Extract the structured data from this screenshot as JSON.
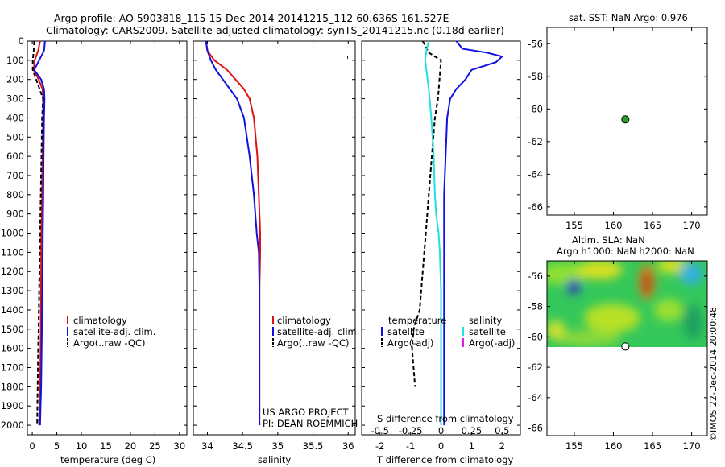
{
  "header": {
    "line1": "Argo profile: AO 5903818_115 15-Dec-2014 20141215_112 60.636S 161.527E",
    "line2": "Climatology: CARS2009. Satellite-adjusted climatology: synTS_20141215.nc (0.18d earlier)"
  },
  "colors": {
    "clim": "#e01010",
    "sat": "#1010e0",
    "argo": "#000000",
    "sal_sat": "#20e0e0",
    "sal_argo": "#e020e0",
    "argo_dot": "#2aa02a"
  },
  "panels": {
    "temperature": {
      "xlabel": "temperature (deg C)",
      "legend": [
        "climatology",
        "satellite-adj. clim.",
        "Argo(..raw -QC)"
      ]
    },
    "salinity": {
      "xlabel": "salinity",
      "legend": [
        "climatology",
        "satellite-adj. clim.",
        "Argo(..raw -QC)"
      ],
      "note1": "US ARGO PROJECT",
      "note2": "PI: DEAN ROEMMICH",
      "marker": "\""
    },
    "difference": {
      "xlabel": "T difference from climatology",
      "top_label": "S difference from climatology",
      "legend_temp_title": "temperature",
      "legend_sal_title": "salinity",
      "legend_temp": [
        "satellite",
        "Argo(-adj)"
      ],
      "legend_sal": [
        "satellite",
        "Argo(-adj)"
      ]
    },
    "sst_map": {
      "title": "sat. SST: NaN Argo: 0.976"
    },
    "sla_map": {
      "title1": "Altim. SLA: NaN",
      "title2": "Argo h1000: NaN h2000: NaN"
    },
    "credit": "©IMOS 22-Dec-2014 20:00:48"
  },
  "chart_data": [
    {
      "type": "line",
      "name": "temperature profile",
      "xlabel": "temperature (deg C)",
      "ylabel": "",
      "xlim": [
        -1,
        31.5
      ],
      "ylim": [
        2050,
        0
      ],
      "xticks": [
        0,
        5,
        10,
        15,
        20,
        25,
        30
      ],
      "yticks": [
        0,
        100,
        200,
        300,
        400,
        500,
        600,
        700,
        800,
        900,
        1000,
        1100,
        1200,
        1300,
        1400,
        1500,
        1600,
        1700,
        1800,
        1900,
        2000
      ],
      "series": [
        {
          "name": "climatology",
          "color": "#e01010",
          "x": [
            1.6,
            1.2,
            0.5,
            0.3,
            1.3,
            2.1,
            2.2,
            2.2,
            2.1,
            2.0,
            1.95,
            1.85,
            1.8,
            1.75,
            1.7,
            1.6,
            1.5,
            1.4
          ],
          "y": [
            0,
            50,
            100,
            150,
            200,
            250,
            300,
            400,
            600,
            800,
            900,
            1000,
            1200,
            1400,
            1600,
            1800,
            1900,
            2000
          ]
        },
        {
          "name": "satellite-adj. clim.",
          "color": "#1010e0",
          "x": [
            2.6,
            2.4,
            1.4,
            0.4,
            1.8,
            2.4,
            2.5,
            2.4,
            2.3,
            2.25,
            2.2,
            2.15,
            2.1,
            2.0,
            1.9,
            1.8,
            1.7,
            1.6
          ],
          "y": [
            0,
            50,
            100,
            150,
            200,
            250,
            300,
            400,
            600,
            800,
            900,
            1000,
            1200,
            1400,
            1600,
            1800,
            1900,
            2000
          ]
        },
        {
          "name": "Argo(..raw -QC)",
          "color": "#000000",
          "dashed": true,
          "x": [
            0.4,
            0.3,
            0.1,
            0.1,
            1.5,
            2.2,
            2.0,
            1.8,
            1.6,
            1.4,
            1.3,
            1.2,
            1.1,
            1.0
          ],
          "y": [
            0,
            50,
            100,
            150,
            250,
            300,
            400,
            700,
            1000,
            1300,
            1500,
            1600,
            1800,
            2000
          ]
        }
      ]
    },
    {
      "type": "line",
      "name": "salinity profile",
      "xlabel": "salinity",
      "ylabel": "",
      "xlim": [
        33.8,
        36.1
      ],
      "ylim": [
        2050,
        0
      ],
      "xticks": [
        34,
        34.5,
        35,
        35.5,
        36
      ],
      "series": [
        {
          "name": "climatology",
          "color": "#e01010",
          "x": [
            33.98,
            34.0,
            34.1,
            34.28,
            34.4,
            34.52,
            34.6,
            34.66,
            34.71,
            34.73,
            34.75,
            34.75,
            34.74,
            34.74,
            34.74
          ],
          "y": [
            0,
            50,
            100,
            150,
            200,
            250,
            300,
            400,
            600,
            800,
            1000,
            1100,
            1300,
            1600,
            2000
          ]
        },
        {
          "name": "satellite-adj. clim.",
          "color": "#1010e0",
          "x": [
            33.98,
            34.0,
            34.05,
            34.12,
            34.22,
            34.32,
            34.42,
            34.52,
            34.6,
            34.66,
            34.7,
            34.73,
            34.74,
            34.74,
            34.74
          ],
          "y": [
            0,
            50,
            100,
            150,
            200,
            250,
            300,
            400,
            600,
            800,
            1000,
            1100,
            1300,
            1600,
            2000
          ]
        }
      ]
    },
    {
      "type": "line",
      "name": "difference from climatology",
      "xlabel": "T difference from climatology",
      "x2label": "S difference from climatology",
      "xlim": [
        -2.6,
        2.6
      ],
      "x2lim": [
        -0.65,
        0.65
      ],
      "ylim": [
        2050,
        0
      ],
      "xticks": [
        -2,
        -1,
        0,
        1,
        2
      ],
      "x2ticks": [
        -0.5,
        -0.25,
        0,
        0.25,
        0.5
      ],
      "series": [
        {
          "name": "temperature satellite",
          "axis": "T",
          "color": "#1010e0",
          "x": [
            0.5,
            0.7,
            1.5,
            2.0,
            1.8,
            1.0,
            0.8,
            0.5,
            0.3,
            0.2,
            0.15,
            0.1,
            0.1,
            0.1,
            0.1,
            0.1,
            0.1,
            0.1
          ],
          "y": [
            0,
            40,
            60,
            80,
            110,
            150,
            200,
            250,
            300,
            400,
            600,
            800,
            1000,
            1200,
            1400,
            1600,
            1800,
            2000
          ]
        },
        {
          "name": "temperature Argo(-adj)",
          "axis": "T",
          "color": "#000000",
          "dashed": true,
          "x": [
            -0.6,
            -0.4,
            0.0,
            -0.1,
            -0.2,
            -0.3,
            -0.4,
            -0.5,
            -0.6,
            -0.7,
            -0.9,
            -0.95,
            -0.9,
            -0.85
          ],
          "y": [
            0,
            60,
            100,
            300,
            400,
            600,
            800,
            1000,
            1200,
            1400,
            1500,
            1600,
            1700,
            1800
          ]
        },
        {
          "name": "salinity satellite",
          "axis": "S",
          "color": "#20e0e0",
          "x": [
            -0.1,
            -0.12,
            -0.13,
            -0.12,
            -0.1,
            -0.08,
            -0.06,
            -0.05,
            -0.04,
            -0.02,
            -0.01,
            0.0,
            0.0,
            0.0,
            0.0
          ],
          "y": [
            0,
            50,
            100,
            150,
            250,
            400,
            600,
            800,
            900,
            1000,
            1100,
            1300,
            1600,
            1800,
            2000
          ]
        }
      ]
    },
    {
      "type": "scatter",
      "name": "sat. SST map",
      "xlim": [
        151.5,
        172
      ],
      "ylim": [
        -66.5,
        -55
      ],
      "xticks": [
        155,
        160,
        165,
        170
      ],
      "yticks": [
        -56,
        -58,
        -60,
        -62,
        -64,
        -66
      ],
      "points": [
        {
          "x": 161.527,
          "y": -60.636
        }
      ]
    },
    {
      "type": "heatmap",
      "name": "Altim. SLA map",
      "xlim": [
        151.5,
        172
      ],
      "ylim": [
        -66.5,
        -55
      ],
      "xticks": [
        155,
        160,
        165,
        170
      ],
      "yticks": [
        -56,
        -58,
        -60,
        -62,
        -64,
        -66
      ],
      "field_extent_lat": [
        -55,
        -60
      ],
      "points": [
        {
          "x": 161.527,
          "y": -60.636
        }
      ]
    }
  ]
}
